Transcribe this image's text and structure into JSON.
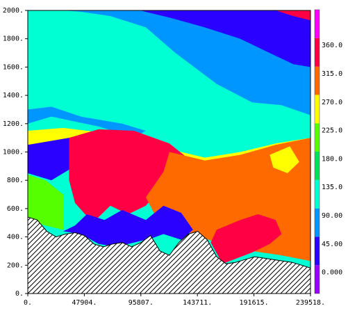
{
  "chart_data": {
    "type": "heatmap",
    "title": "",
    "xlabel": "",
    "ylabel": "",
    "xlim": [
      0,
      239518
    ],
    "ylim": [
      0,
      2000
    ],
    "x_ticks": [
      {
        "value": 0,
        "label": "0."
      },
      {
        "value": 47904,
        "label": "47904."
      },
      {
        "value": 95807,
        "label": "95807."
      },
      {
        "value": 143711,
        "label": "143711."
      },
      {
        "value": 191615,
        "label": "191615."
      },
      {
        "value": 239518,
        "label": "239518."
      }
    ],
    "y_ticks": [
      {
        "value": 0,
        "label": "0."
      },
      {
        "value": 200,
        "label": "200."
      },
      {
        "value": 400,
        "label": "400."
      },
      {
        "value": 600,
        "label": "600."
      },
      {
        "value": 800,
        "label": "800."
      },
      {
        "value": 1000,
        "label": "1000."
      },
      {
        "value": 1200,
        "label": "1200."
      },
      {
        "value": 1400,
        "label": "1400."
      },
      {
        "value": 1600,
        "label": "1600."
      },
      {
        "value": 1800,
        "label": "1800."
      },
      {
        "value": 2000,
        "label": "2000."
      }
    ],
    "colorbar": {
      "bins": [
        {
          "color": "#9a00ff",
          "label": "0.000"
        },
        {
          "color": "#2a00ff",
          "label": "45.00"
        },
        {
          "color": "#0096ff",
          "label": "90.00"
        },
        {
          "color": "#00ffd2",
          "label": "135.0"
        },
        {
          "color": "#00e05a",
          "label": "180.0"
        },
        {
          "color": "#55ff00",
          "label": "225.0"
        },
        {
          "color": "#ffff00",
          "label": "270.0"
        },
        {
          "color": "#ff6a00",
          "label": "315.0"
        },
        {
          "color": "#ff0044",
          "label": "360.0"
        },
        {
          "color": "#ff00ff",
          "label": ""
        }
      ]
    },
    "regions": [
      {
        "name": "top-cyan",
        "value": 135,
        "color": "#00ffd2",
        "points": [
          [
            0,
            2000
          ],
          [
            239518,
            2000
          ],
          [
            239518,
            1180
          ],
          [
            198000,
            1120
          ],
          [
            170000,
            1060
          ],
          [
            140000,
            970
          ],
          [
            110000,
            1080
          ],
          [
            80000,
            1150
          ],
          [
            40000,
            1200
          ],
          [
            0,
            1170
          ]
        ]
      },
      {
        "name": "upper-blue-band",
        "value": 90,
        "color": "#0096ff",
        "points": [
          [
            30000,
            2000
          ],
          [
            239518,
            2000
          ],
          [
            239518,
            1260
          ],
          [
            215000,
            1330
          ],
          [
            190000,
            1350
          ],
          [
            160000,
            1480
          ],
          [
            125000,
            1700
          ],
          [
            100000,
            1880
          ],
          [
            70000,
            1960
          ],
          [
            45000,
            1990
          ]
        ]
      },
      {
        "name": "upper-left-blue",
        "value": 90,
        "color": "#0096ff",
        "points": [
          [
            0,
            1300
          ],
          [
            20000,
            1320
          ],
          [
            45000,
            1250
          ],
          [
            80000,
            1200
          ],
          [
            100000,
            1150
          ],
          [
            90000,
            1100
          ],
          [
            60000,
            1180
          ],
          [
            20000,
            1250
          ],
          [
            0,
            1200
          ]
        ]
      },
      {
        "name": "top-navy",
        "value": 45,
        "color": "#2a00ff",
        "points": [
          [
            95000,
            2000
          ],
          [
            239518,
            2000
          ],
          [
            239518,
            1600
          ],
          [
            225000,
            1620
          ],
          [
            205000,
            1700
          ],
          [
            180000,
            1800
          ],
          [
            150000,
            1880
          ],
          [
            120000,
            1950
          ]
        ]
      },
      {
        "name": "top-right-red",
        "value": 360,
        "color": "#ff0044",
        "points": [
          [
            210000,
            2000
          ],
          [
            239518,
            2000
          ],
          [
            239518,
            1930
          ],
          [
            225000,
            1960
          ]
        ]
      },
      {
        "name": "left-yellow-band",
        "value": 270,
        "color": "#ffff00",
        "points": [
          [
            0,
            1150
          ],
          [
            30000,
            1170
          ],
          [
            60000,
            1140
          ],
          [
            90000,
            1110
          ],
          [
            120000,
            1020
          ],
          [
            150000,
            960
          ],
          [
            180000,
            1000
          ],
          [
            210000,
            1060
          ],
          [
            239518,
            1100
          ],
          [
            239518,
            960
          ],
          [
            210000,
            930
          ],
          [
            180000,
            880
          ],
          [
            150000,
            850
          ],
          [
            120000,
            880
          ],
          [
            90000,
            940
          ],
          [
            60000,
            980
          ],
          [
            30000,
            1000
          ],
          [
            0,
            980
          ]
        ]
      },
      {
        "name": "left-navy",
        "value": 45,
        "color": "#2a00ff",
        "points": [
          [
            0,
            1050
          ],
          [
            35000,
            1100
          ],
          [
            60000,
            1130
          ],
          [
            60000,
            950
          ],
          [
            40000,
            900
          ],
          [
            20000,
            800
          ],
          [
            0,
            850
          ]
        ]
      },
      {
        "name": "left-green",
        "value": 225,
        "color": "#55ff00",
        "points": [
          [
            0,
            840
          ],
          [
            15000,
            800
          ],
          [
            30000,
            700
          ],
          [
            30000,
            450
          ],
          [
            15000,
            480
          ],
          [
            0,
            520
          ]
        ]
      },
      {
        "name": "central-red",
        "value": 360,
        "color": "#ff0044",
        "points": [
          [
            35000,
            1100
          ],
          [
            60000,
            1160
          ],
          [
            90000,
            1150
          ],
          [
            120000,
            1060
          ],
          [
            135000,
            960
          ],
          [
            120000,
            860
          ],
          [
            110000,
            720
          ],
          [
            100000,
            620
          ],
          [
            85000,
            560
          ],
          [
            70000,
            620
          ],
          [
            55000,
            500
          ],
          [
            40000,
            640
          ],
          [
            35000,
            800
          ]
        ]
      },
      {
        "name": "right-orange",
        "value": 315,
        "color": "#ff6a00",
        "points": [
          [
            120000,
            1000
          ],
          [
            150000,
            940
          ],
          [
            180000,
            980
          ],
          [
            210000,
            1050
          ],
          [
            239518,
            1100
          ],
          [
            239518,
            230
          ],
          [
            215000,
            270
          ],
          [
            190000,
            300
          ],
          [
            160000,
            360
          ],
          [
            140000,
            420
          ],
          [
            125000,
            460
          ],
          [
            110000,
            520
          ],
          [
            100000,
            680
          ],
          [
            115000,
            860
          ]
        ]
      },
      {
        "name": "right-yellow-patch",
        "value": 270,
        "color": "#ffff00",
        "points": [
          [
            205000,
            980
          ],
          [
            222000,
            1040
          ],
          [
            230000,
            930
          ],
          [
            220000,
            850
          ],
          [
            208000,
            890
          ]
        ]
      },
      {
        "name": "lower-right-red",
        "value": 360,
        "color": "#ff0044",
        "points": [
          [
            165000,
            210
          ],
          [
            190000,
            290
          ],
          [
            205000,
            350
          ],
          [
            215000,
            420
          ],
          [
            210000,
            520
          ],
          [
            195000,
            560
          ],
          [
            180000,
            520
          ],
          [
            160000,
            450
          ],
          [
            155000,
            360
          ]
        ]
      },
      {
        "name": "lower-left-blue",
        "value": 45,
        "color": "#2a00ff",
        "points": [
          [
            30000,
            440
          ],
          [
            45000,
            420
          ],
          [
            60000,
            350
          ],
          [
            75000,
            330
          ],
          [
            90000,
            360
          ],
          [
            105000,
            390
          ],
          [
            115000,
            420
          ],
          [
            130000,
            380
          ],
          [
            140000,
            450
          ],
          [
            130000,
            570
          ],
          [
            115000,
            620
          ],
          [
            100000,
            520
          ],
          [
            80000,
            590
          ],
          [
            65000,
            520
          ],
          [
            50000,
            560
          ],
          [
            40000,
            480
          ]
        ]
      }
    ],
    "terrain_profile": [
      [
        0,
        540
      ],
      [
        8000,
        520
      ],
      [
        16000,
        440
      ],
      [
        24000,
        400
      ],
      [
        32000,
        420
      ],
      [
        40000,
        430
      ],
      [
        48000,
        410
      ],
      [
        56000,
        350
      ],
      [
        64000,
        330
      ],
      [
        72000,
        350
      ],
      [
        80000,
        360
      ],
      [
        88000,
        330
      ],
      [
        96000,
        360
      ],
      [
        104000,
        410
      ],
      [
        112000,
        300
      ],
      [
        120000,
        270
      ],
      [
        128000,
        360
      ],
      [
        136000,
        420
      ],
      [
        144000,
        440
      ],
      [
        152000,
        380
      ],
      [
        160000,
        260
      ],
      [
        168000,
        210
      ],
      [
        176000,
        220
      ],
      [
        184000,
        240
      ],
      [
        192000,
        260
      ],
      [
        200000,
        250
      ],
      [
        208000,
        240
      ],
      [
        216000,
        230
      ],
      [
        224000,
        220
      ],
      [
        232000,
        200
      ],
      [
        239518,
        180
      ]
    ]
  }
}
